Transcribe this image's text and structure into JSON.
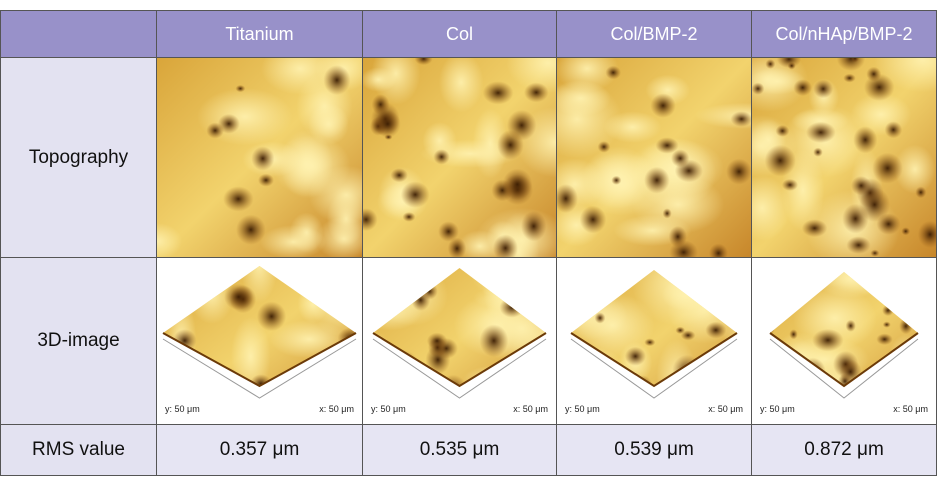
{
  "table": {
    "columns": [
      "Titanium",
      "Col",
      "Col/BMP-2",
      "Col/nHAp/BMP-2"
    ],
    "row_labels": [
      "Topography",
      "3D-image",
      "RMS value"
    ],
    "axis_labels": {
      "y": "y: 50 μm",
      "x": "x: 50 μm"
    },
    "rms_values": [
      "0.357 μm",
      "0.535 μm",
      "0.539 μm",
      "0.872 μm"
    ]
  }
}
